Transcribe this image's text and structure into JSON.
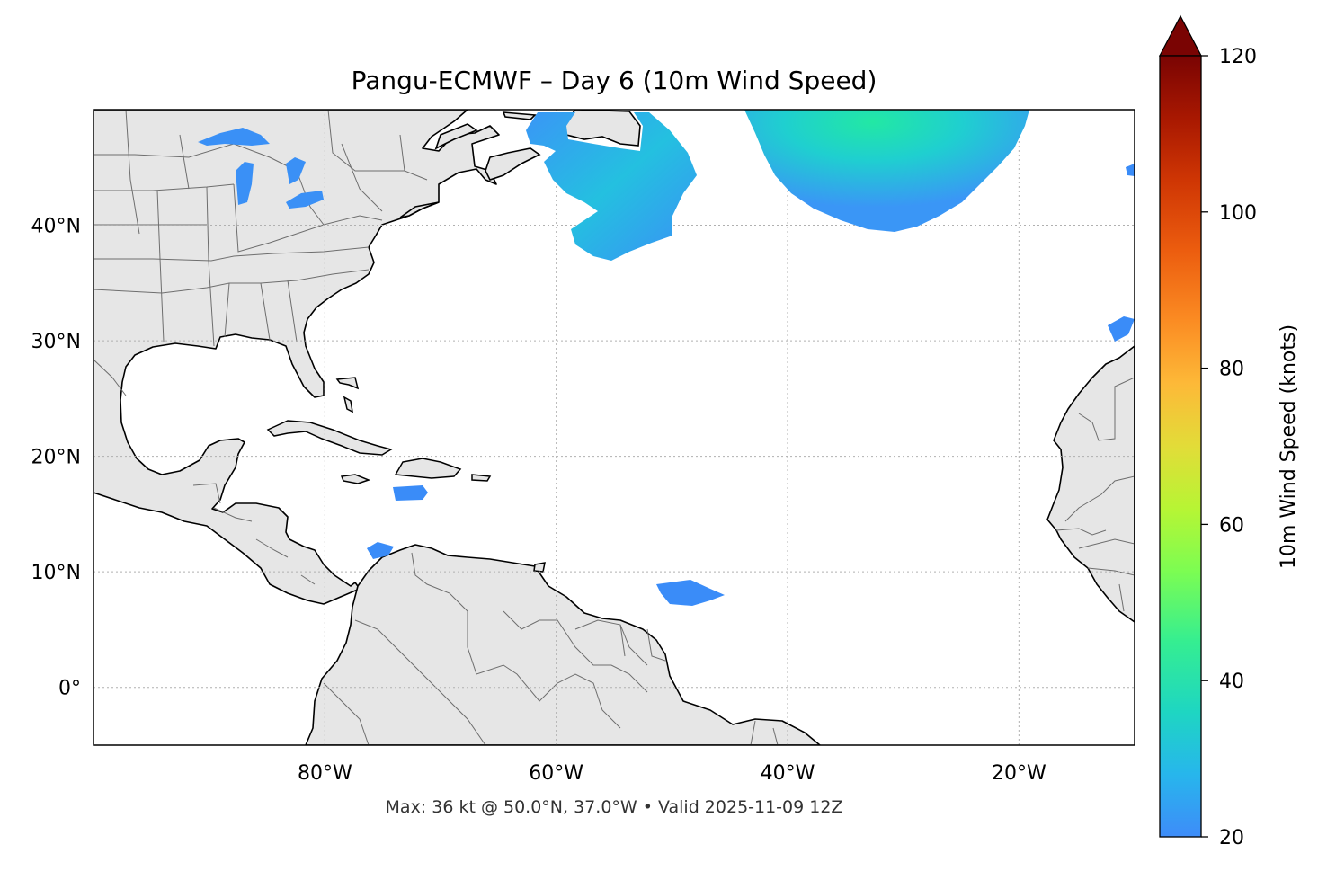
{
  "title": "Pangu-ECMWF – Day 6 (10m Wind Speed)",
  "footer": "Max: 36 kt @ 50.0°N, 37.0°W • Valid 2025-11-09 12Z",
  "map": {
    "lon_range": [
      -100,
      -10
    ],
    "lat_range": [
      -5,
      50
    ],
    "lat_ticks": [
      {
        "value": 40,
        "label": "40°N"
      },
      {
        "value": 30,
        "label": "30°N"
      },
      {
        "value": 20,
        "label": "20°N"
      },
      {
        "value": 10,
        "label": "10°N"
      },
      {
        "value": 0,
        "label": "0°"
      }
    ],
    "lon_ticks": [
      {
        "value": -80,
        "label": "80°W"
      },
      {
        "value": -60,
        "label": "60°W"
      },
      {
        "value": -40,
        "label": "40°W"
      },
      {
        "value": -20,
        "label": "20°W"
      }
    ],
    "gridlines": "dotted",
    "land_color": "#e6e6e6",
    "coastline_color": "#000000",
    "border_color": "#6e6e6e"
  },
  "colorbar": {
    "label": "10m Wind Speed (knots)",
    "min": 20,
    "max": 120,
    "extend": "max",
    "colormap": "turbo",
    "ticks": [
      {
        "value": 20,
        "label": "20"
      },
      {
        "value": 40,
        "label": "40"
      },
      {
        "value": 60,
        "label": "60"
      },
      {
        "value": 80,
        "label": "80"
      },
      {
        "value": 100,
        "label": "100"
      },
      {
        "value": 120,
        "label": "120"
      }
    ]
  },
  "wind_regions": [
    {
      "name": "north-atlantic-high-wind",
      "peak_kt": 36
    },
    {
      "name": "newfoundland-wind",
      "peak_kt": 30
    },
    {
      "name": "great-lakes-wind",
      "peak_kt": 24
    },
    {
      "name": "caribbean-wind",
      "peak_kt": 22
    },
    {
      "name": "tropical-atlantic-wind",
      "peak_kt": 21
    },
    {
      "name": "canary-wind",
      "peak_kt": 22
    }
  ]
}
